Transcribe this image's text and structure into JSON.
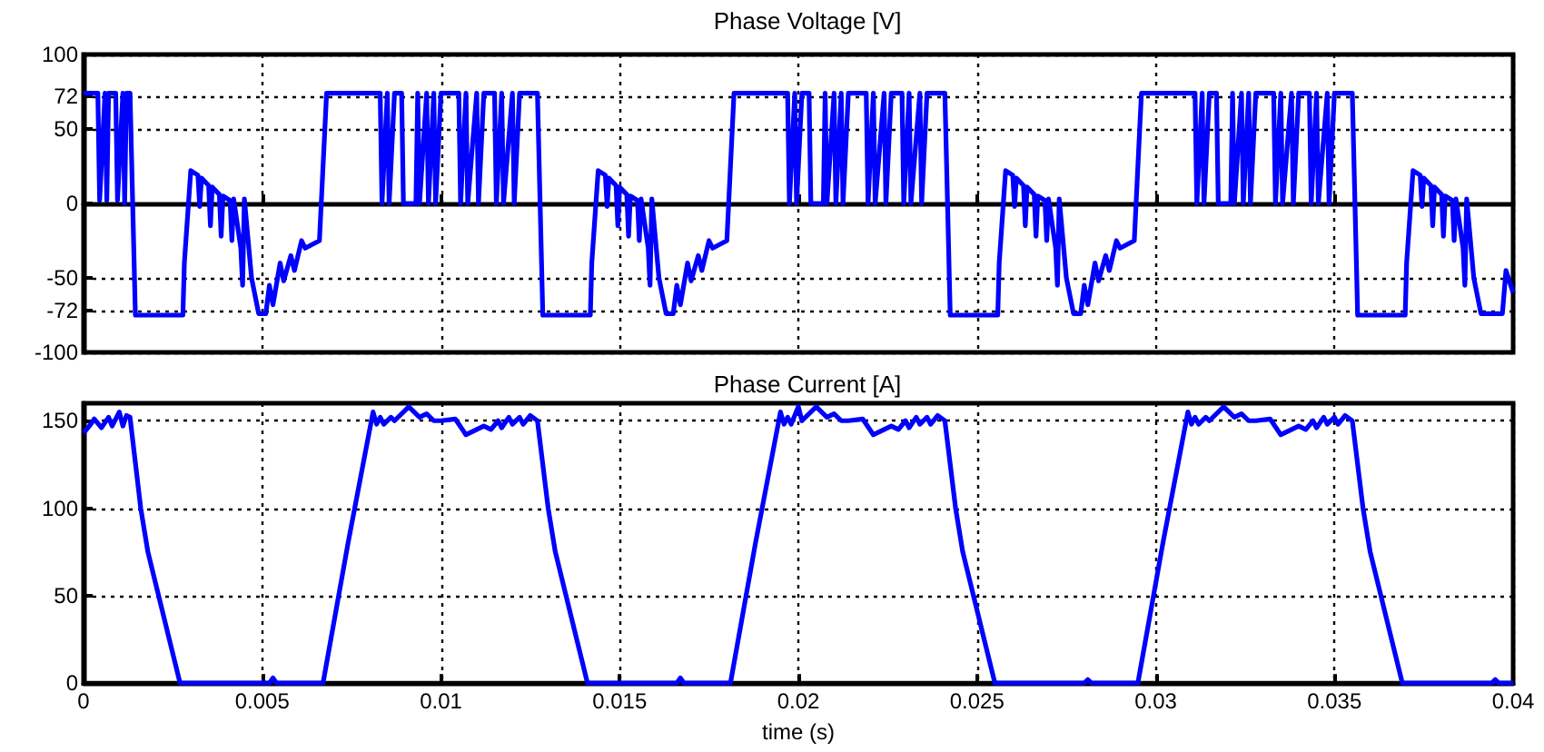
{
  "chart_data": [
    {
      "type": "line",
      "title": "Phase Voltage [V]",
      "xlim": [
        0,
        0.04
      ],
      "xticks": [
        0,
        0.005,
        0.01,
        0.015,
        0.02,
        0.025,
        0.03,
        0.035,
        0.04
      ],
      "ylim": [
        -100,
        100
      ],
      "yticks": [
        -100,
        -72,
        -50,
        0,
        50,
        72,
        100
      ],
      "grid": true,
      "marker": "none",
      "tick_labels": "y",
      "series": [
        {
          "color": "#0000ff",
          "x": [
            0,
            0.0004,
            0.00045,
            0.0006,
            0.00065,
            0.0007,
            0.0009,
            0.00095,
            0.0011,
            0.00115,
            0.0012,
            0.0013,
            0.00145,
            0.00278,
            0.00282,
            0.003,
            0.0032,
            0.00325,
            0.0033,
            0.0035,
            0.00355,
            0.0036,
            0.0038,
            0.00385,
            0.0039,
            0.0041,
            0.00415,
            0.0042,
            0.0044,
            0.00445,
            0.0045,
            0.0047,
            0.0049,
            0.0051,
            0.0052,
            0.0053,
            0.0055,
            0.0056,
            0.0058,
            0.0059,
            0.0061,
            0.0062,
            0.0066,
            0.0068,
            0.0083,
            0.00835,
            0.0085,
            0.00855,
            0.0087,
            0.0089,
            0.00895,
            0.009,
            0.0093,
            0.00935,
            0.0094,
            0.0096,
            0.00965,
            0.0098,
            0.00985,
            0.01,
            0.0105,
            0.01055,
            0.0107,
            0.01075,
            0.011,
            0.01105,
            0.0112,
            0.0115,
            0.01155,
            0.0117,
            0.01175,
            0.012,
            0.01205,
            0.0122,
            0.0127,
            0.01285,
            0.01418,
            0.01422,
            0.0144,
            0.0146,
            0.01465,
            0.0147,
            0.0149,
            0.01495,
            0.015,
            0.0152,
            0.01525,
            0.0153,
            0.0155,
            0.01555,
            0.0156,
            0.0158,
            0.01585,
            0.0159,
            0.0161,
            0.0163,
            0.0165,
            0.0166,
            0.0167,
            0.0169,
            0.017,
            0.0172,
            0.0173,
            0.0175,
            0.0176,
            0.018,
            0.0182,
            0.0197,
            0.01975,
            0.0199,
            0.01995,
            0.0201,
            0.0203,
            0.02035,
            0.0204,
            0.0207,
            0.02075,
            0.0208,
            0.021,
            0.02105,
            0.0212,
            0.02125,
            0.0214,
            0.0219,
            0.02195,
            0.0221,
            0.02215,
            0.0224,
            0.02245,
            0.0226,
            0.0229,
            0.02295,
            0.0231,
            0.02315,
            0.0234,
            0.02345,
            0.0236,
            0.0241,
            0.02425,
            0.02558,
            0.02562,
            0.0258,
            0.026,
            0.02605,
            0.0261,
            0.0263,
            0.02635,
            0.0264,
            0.0266,
            0.02665,
            0.0267,
            0.0269,
            0.02695,
            0.027,
            0.0272,
            0.02725,
            0.0273,
            0.0275,
            0.0277,
            0.0279,
            0.028,
            0.0281,
            0.0283,
            0.0284,
            0.0286,
            0.0287,
            0.0289,
            0.029,
            0.0294,
            0.0296,
            0.0311,
            0.03115,
            0.0313,
            0.03135,
            0.0315,
            0.0317,
            0.03175,
            0.0318,
            0.0321,
            0.03215,
            0.0322,
            0.0324,
            0.03245,
            0.0326,
            0.03265,
            0.0328,
            0.0333,
            0.03335,
            0.0335,
            0.03355,
            0.0338,
            0.03385,
            0.034,
            0.0343,
            0.03435,
            0.0345,
            0.03455,
            0.0348,
            0.03485,
            0.035,
            0.0355,
            0.03565,
            0.03698,
            0.03702,
            0.0372,
            0.0374,
            0.03745,
            0.0375,
            0.0377,
            0.03775,
            0.0378,
            0.038,
            0.03805,
            0.0381,
            0.0383,
            0.03835,
            0.0384,
            0.0386,
            0.03865,
            0.0387,
            0.0389,
            0.0391,
            0.0393,
            0.0395,
            0.0397,
            0.0398,
            0.04
          ],
          "values": [
            74,
            74,
            2,
            74,
            2,
            74,
            74,
            2,
            74,
            0,
            74,
            74,
            -75,
            -75,
            -40,
            22,
            19,
            -2,
            17,
            12,
            -15,
            11,
            6,
            -22,
            5,
            2,
            -25,
            3,
            -30,
            -55,
            3,
            -50,
            -74,
            -74,
            -55,
            -68,
            -40,
            -52,
            -35,
            -45,
            -25,
            -30,
            -25,
            74,
            74,
            0,
            74,
            0,
            74,
            74,
            0,
            0,
            0,
            74,
            0,
            74,
            0,
            74,
            0,
            74,
            74,
            0,
            74,
            0,
            74,
            0,
            74,
            74,
            0,
            74,
            0,
            74,
            0,
            74,
            74,
            -75,
            -75,
            -40,
            22,
            19,
            -2,
            17,
            12,
            -15,
            11,
            6,
            -22,
            5,
            2,
            -25,
            3,
            -30,
            -55,
            3,
            -50,
            -74,
            -74,
            -55,
            -68,
            -40,
            -52,
            -35,
            -45,
            -25,
            -30,
            -25,
            74,
            74,
            0,
            74,
            0,
            74,
            74,
            0,
            0,
            0,
            74,
            0,
            74,
            0,
            74,
            0,
            74,
            74,
            0,
            74,
            0,
            74,
            0,
            74,
            74,
            0,
            74,
            0,
            74,
            0,
            74,
            74,
            -75,
            -75,
            -40,
            22,
            19,
            -2,
            17,
            12,
            -15,
            11,
            6,
            -22,
            5,
            2,
            -25,
            3,
            -30,
            -55,
            3,
            -50,
            -74,
            -74,
            -55,
            -68,
            -40,
            -52,
            -35,
            -45,
            -25,
            -30,
            -25,
            74,
            74,
            0,
            74,
            0,
            74,
            74,
            0,
            0,
            0,
            74,
            0,
            74,
            0,
            74,
            0,
            74,
            74,
            0,
            74,
            0,
            74,
            0,
            74,
            74,
            0,
            74,
            0,
            74,
            0,
            74,
            74,
            -75,
            -75,
            -40,
            22,
            19,
            -2,
            17,
            12,
            -15,
            11,
            6,
            -22,
            5,
            2,
            -25,
            3,
            -30,
            -55,
            3,
            -50,
            -74,
            -74,
            -74,
            -74,
            -45,
            -60
          ]
        }
      ]
    },
    {
      "type": "line",
      "title": "Phase Current [A]",
      "xlabel": "time (s)",
      "xlim": [
        0,
        0.04
      ],
      "xticks": [
        0,
        0.005,
        0.01,
        0.015,
        0.02,
        0.025,
        0.03,
        0.035,
        0.04
      ],
      "ylim": [
        0,
        160
      ],
      "yticks": [
        0,
        50,
        100,
        150
      ],
      "grid": true,
      "marker": "none",
      "series": [
        {
          "color": "#0000ff",
          "x": [
            0,
            0.0002,
            0.0003,
            0.0005,
            0.0007,
            0.0008,
            0.001,
            0.0011,
            0.0012,
            0.0013,
            0.0016,
            0.0018,
            0.0021,
            0.0024,
            0.0027,
            0.0052,
            0.0053,
            0.0054,
            0.0067,
            0.0074,
            0.0081,
            0.0082,
            0.0083,
            0.0084,
            0.0086,
            0.0087,
            0.0091,
            0.0094,
            0.0096,
            0.0098,
            0.01,
            0.0104,
            0.0107,
            0.0112,
            0.0114,
            0.0116,
            0.0117,
            0.0119,
            0.012,
            0.0122,
            0.0123,
            0.0125,
            0.0127,
            0.013,
            0.0132,
            0.0135,
            0.0138,
            0.0141,
            0.0166,
            0.0167,
            0.0168,
            0.0181,
            0.0188,
            0.0195,
            0.0196,
            0.0197,
            0.0198,
            0.02,
            0.0201,
            0.0205,
            0.0208,
            0.021,
            0.0212,
            0.0214,
            0.0218,
            0.0221,
            0.0226,
            0.0228,
            0.023,
            0.0231,
            0.0233,
            0.0234,
            0.0236,
            0.0237,
            0.0239,
            0.0241,
            0.0244,
            0.0246,
            0.0249,
            0.0252,
            0.0255,
            0.028,
            0.0281,
            0.0282,
            0.0295,
            0.0302,
            0.0309,
            0.031,
            0.0311,
            0.0312,
            0.0314,
            0.0315,
            0.0319,
            0.0322,
            0.0324,
            0.0326,
            0.0328,
            0.0332,
            0.0335,
            0.034,
            0.0342,
            0.0344,
            0.0345,
            0.0347,
            0.0348,
            0.035,
            0.0351,
            0.0353,
            0.0355,
            0.0358,
            0.036,
            0.0363,
            0.0366,
            0.0369,
            0.0394,
            0.0395,
            0.0396,
            0.04
          ],
          "values": [
            143,
            148,
            151,
            146,
            152,
            147,
            155,
            147,
            153,
            152,
            100,
            75,
            50,
            25,
            0,
            0,
            3,
            0,
            0,
            80,
            155,
            148,
            152,
            148,
            152,
            150,
            158,
            152,
            154,
            150,
            150,
            151,
            142,
            147,
            145,
            150,
            146,
            152,
            148,
            152,
            148,
            153,
            150,
            100,
            75,
            50,
            25,
            0,
            0,
            3,
            0,
            0,
            80,
            155,
            148,
            152,
            148,
            158,
            150,
            158,
            152,
            154,
            150,
            150,
            151,
            142,
            147,
            145,
            150,
            146,
            152,
            148,
            152,
            148,
            153,
            150,
            100,
            75,
            50,
            25,
            0,
            0,
            2,
            0,
            0,
            80,
            155,
            148,
            152,
            148,
            152,
            150,
            158,
            152,
            154,
            150,
            150,
            151,
            142,
            147,
            145,
            150,
            146,
            152,
            148,
            152,
            148,
            153,
            150,
            100,
            75,
            50,
            25,
            0,
            0,
            2,
            0,
            0
          ]
        }
      ]
    }
  ]
}
